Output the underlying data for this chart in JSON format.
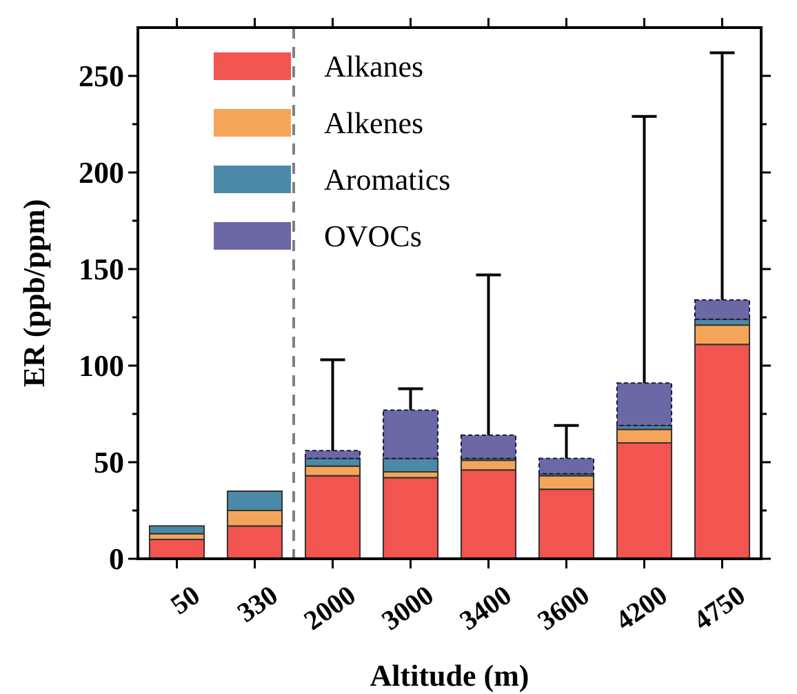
{
  "chart_data": {
    "type": "bar",
    "stacked": true,
    "xlabel": "Altitude (m)",
    "ylabel": "ER (ppb/ppm)",
    "categories": [
      "50",
      "330",
      "2000",
      "3000",
      "3400",
      "3600",
      "4200",
      "4750"
    ],
    "series": [
      {
        "name": "Alkanes",
        "color": "#f25450",
        "values": [
          10,
          17,
          43,
          42,
          46,
          36,
          60,
          111
        ]
      },
      {
        "name": "Alkenes",
        "color": "#f5a55a",
        "values": [
          3,
          8,
          5,
          3,
          5,
          7,
          7,
          10
        ]
      },
      {
        "name": "Aromatics",
        "color": "#4a8aa8",
        "values": [
          4,
          10,
          4,
          7,
          1,
          1,
          2,
          3
        ]
      },
      {
        "name": "OVOCs",
        "color": "#6b68a5",
        "values": [
          0,
          0,
          4,
          25,
          12,
          8,
          22,
          10
        ],
        "errors": [
          null,
          null,
          [
            56,
            103
          ],
          [
            77,
            88
          ],
          [
            64,
            147
          ],
          [
            52,
            69
          ],
          [
            91,
            229
          ],
          [
            134,
            262
          ]
        ]
      }
    ],
    "ylim": [
      0,
      275
    ],
    "yticks": [
      0,
      {
        "value": 25,
        "label": null
      },
      50,
      {
        "value": 75,
        "label": null
      },
      100,
      {
        "value": 125,
        "label": null
      },
      150,
      {
        "value": 175,
        "label": null
      },
      200,
      {
        "value": 225,
        "label": null
      },
      250
    ],
    "legend": "top left",
    "grid": false
  }
}
